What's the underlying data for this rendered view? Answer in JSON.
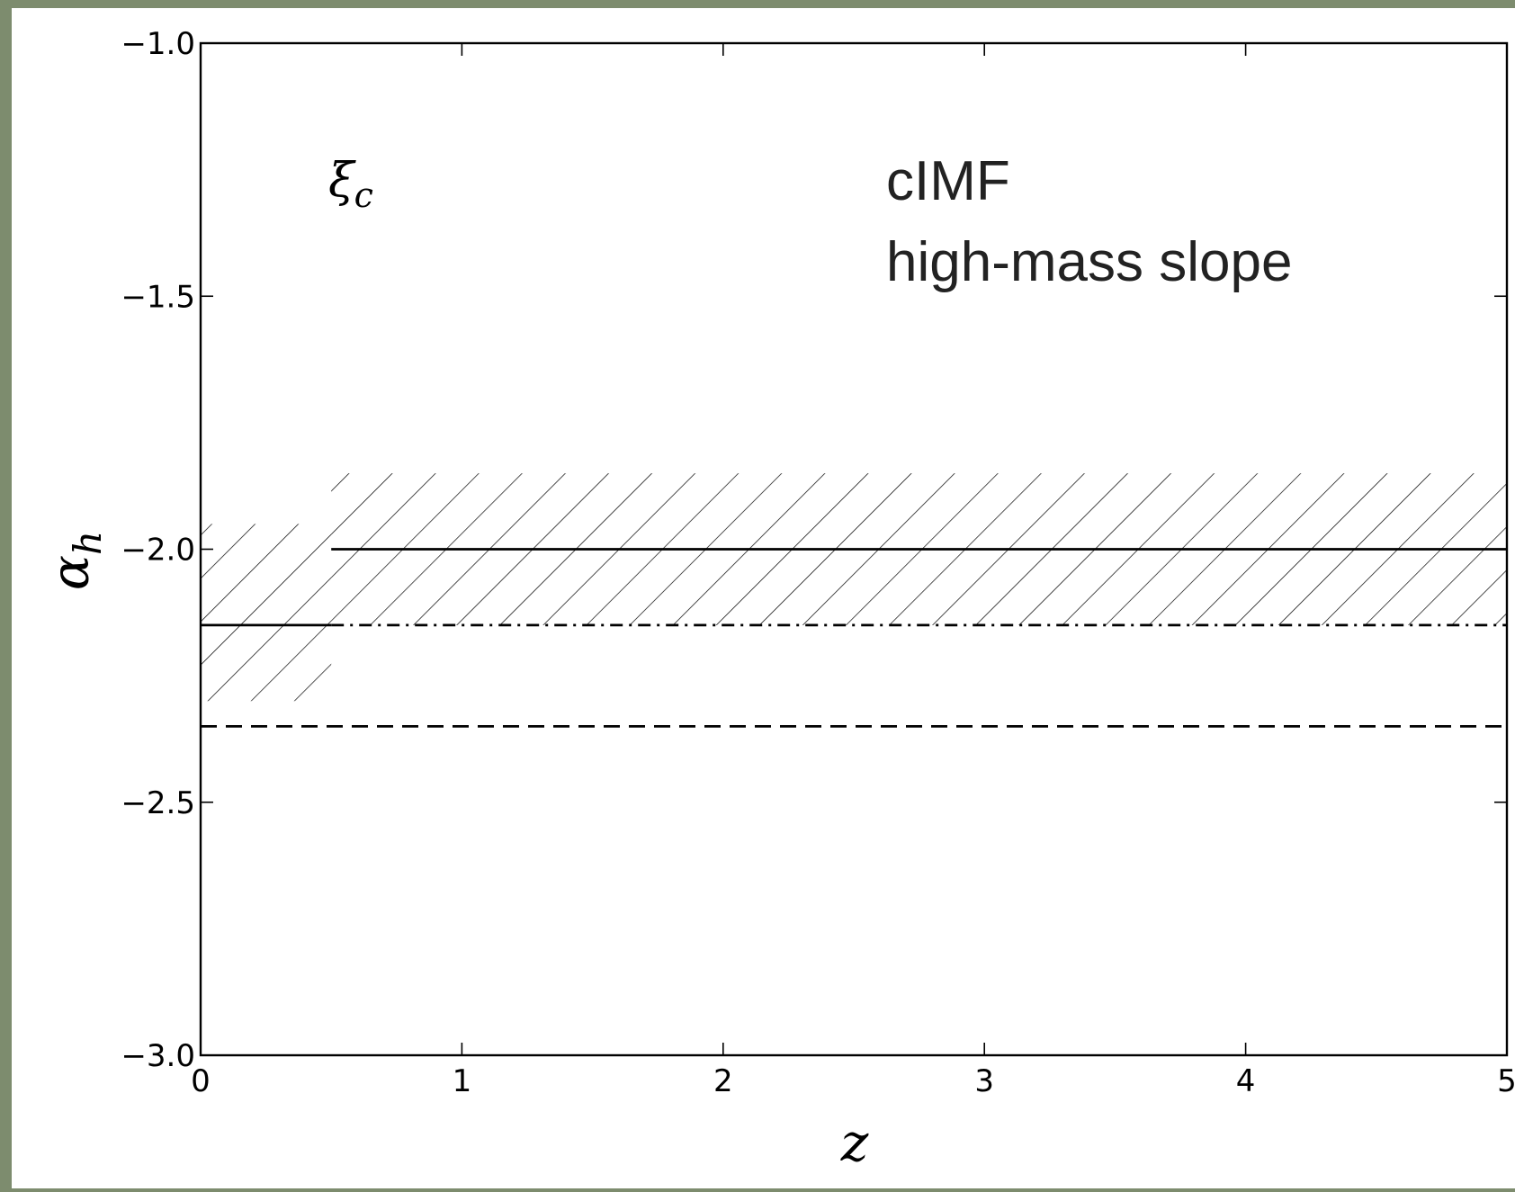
{
  "chart_data": {
    "type": "line",
    "ylabel": {
      "symbol": "α",
      "subscript": "h"
    },
    "xlabel": "z",
    "annotations": [
      {
        "symbol": "ξ",
        "subscript": "c"
      },
      "cIMF",
      "high-mass slope"
    ],
    "xlim": [
      0,
      5
    ],
    "xticks": [
      0,
      1,
      2,
      3,
      4,
      5
    ],
    "ylim": [
      -3,
      -1
    ],
    "yticks": [
      {
        "value": -3,
        "label": "−3.0"
      },
      {
        "value": -2.5,
        "label": "−2.5"
      },
      {
        "value": -2,
        "label": "−2.0"
      },
      {
        "value": -1.5,
        "label": "−1.5"
      },
      {
        "value": -1,
        "label": "−1.0"
      }
    ],
    "color": "#000000",
    "bands": [
      {
        "x": [
          0,
          0.5
        ],
        "lower": -2.3,
        "upper": -1.95
      },
      {
        "x": [
          0.5,
          5
        ],
        "lower": -2.15,
        "upper": -1.85
      }
    ],
    "series": [
      {
        "style": "solid",
        "x": [
          0,
          0.5
        ],
        "values": [
          -2.15,
          -2.15
        ]
      },
      {
        "style": "solid",
        "x": [
          0.5,
          5
        ],
        "values": [
          -2,
          -2
        ]
      },
      {
        "style": "dashdot",
        "x": [
          0.5,
          5
        ],
        "values": [
          -2.15,
          -2.15
        ]
      },
      {
        "style": "dashed",
        "x": [
          0,
          5
        ],
        "values": [
          -2.35,
          -2.35
        ]
      }
    ]
  }
}
